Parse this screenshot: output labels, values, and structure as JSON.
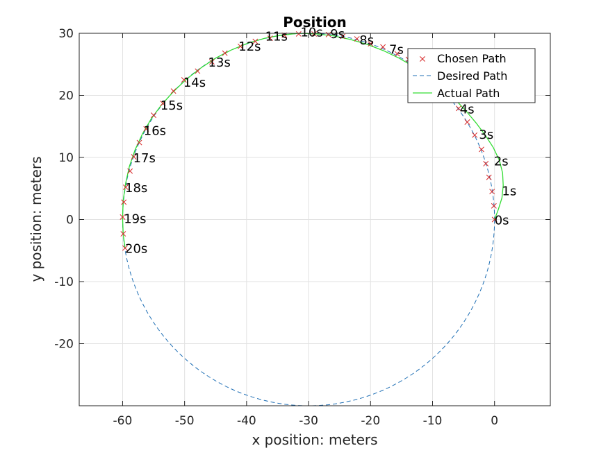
{
  "chart_data": {
    "type": "line",
    "title": "Position",
    "xlabel": "x position: meters",
    "ylabel": "y position: meters",
    "xlim": [
      -67,
      9
    ],
    "ylim": [
      -30,
      30
    ],
    "xticks": [
      -60,
      -50,
      -40,
      -30,
      -20,
      -10,
      0
    ],
    "yticks": [
      -20,
      -10,
      0,
      10,
      20,
      30
    ],
    "tick_labels_x": [
      "-60",
      "-50",
      "-40",
      "-30",
      "-20",
      "-10",
      "0"
    ],
    "tick_labels_y": [
      "-20",
      "-10",
      "0",
      "10",
      "20",
      "30"
    ],
    "grid": true,
    "legend_position": "top-right",
    "series": [
      {
        "name": "Chosen Path",
        "style": "x-markers",
        "color": "#d62728",
        "points": [
          [
            0,
            0
          ],
          [
            -0.1,
            2.2
          ],
          [
            -0.4,
            4.5
          ],
          [
            -0.9,
            6.8
          ],
          [
            -1.4,
            9.0
          ],
          [
            -2.1,
            11.3
          ],
          [
            -3.2,
            13.6
          ],
          [
            -4.4,
            15.7
          ],
          [
            -5.8,
            17.9
          ],
          [
            -7.2,
            19.8
          ],
          [
            -8.7,
            21.5
          ],
          [
            -10.5,
            23.2
          ],
          [
            -12.1,
            24.5
          ],
          [
            -13.9,
            25.8
          ],
          [
            -15.7,
            26.7
          ],
          [
            -18.0,
            27.8
          ],
          [
            -20.0,
            28.3
          ],
          [
            -22.2,
            29.1
          ],
          [
            -24.5,
            29.5
          ],
          [
            -26.8,
            29.8
          ],
          [
            -29.1,
            29.9
          ],
          [
            -31.6,
            29.9
          ],
          [
            -33.9,
            29.7
          ],
          [
            -36.2,
            29.2
          ],
          [
            -38.6,
            28.7
          ],
          [
            -41.0,
            27.9
          ],
          [
            -43.5,
            26.8
          ],
          [
            -45.6,
            25.4
          ],
          [
            -47.9,
            23.9
          ],
          [
            -50.1,
            22.5
          ],
          [
            -51.8,
            20.7
          ],
          [
            -53.5,
            18.7
          ],
          [
            -55.0,
            16.8
          ],
          [
            -56.2,
            14.6
          ],
          [
            -57.3,
            12.4
          ],
          [
            -58.2,
            10.1
          ],
          [
            -58.8,
            7.8
          ],
          [
            -59.5,
            5.2
          ],
          [
            -59.8,
            2.8
          ],
          [
            -60.0,
            0.4
          ],
          [
            -59.9,
            -2.3
          ],
          [
            -59.6,
            -4.6
          ]
        ]
      },
      {
        "name": "Desired Path",
        "style": "dashed",
        "color": "#1f6fb5",
        "circle": {
          "center": [
            -30,
            0
          ],
          "radius": 30
        }
      },
      {
        "name": "Actual Path",
        "style": "solid",
        "color": "#33dd33",
        "points": [
          [
            0,
            0
          ],
          [
            0.6,
            1.6
          ],
          [
            1.2,
            3.5
          ],
          [
            1.4,
            5.5
          ],
          [
            1.3,
            7.5
          ],
          [
            0.8,
            9.5
          ],
          [
            -0.2,
            11.6
          ],
          [
            -1.5,
            13.6
          ],
          [
            -3.0,
            15.6
          ],
          [
            -4.7,
            17.6
          ],
          [
            -6.6,
            19.6
          ],
          [
            -8.6,
            21.4
          ],
          [
            -10.8,
            23.1
          ],
          [
            -13.0,
            24.6
          ],
          [
            -15.4,
            26.0
          ],
          [
            -17.9,
            27.2
          ],
          [
            -20.5,
            28.2
          ],
          [
            -23.2,
            29.0
          ],
          [
            -26.0,
            29.6
          ],
          [
            -28.8,
            29.9
          ],
          [
            -31.6,
            30.0
          ],
          [
            -34.4,
            29.7
          ],
          [
            -37.1,
            29.2
          ],
          [
            -39.8,
            28.4
          ],
          [
            -42.5,
            27.3
          ],
          [
            -45.0,
            26.0
          ],
          [
            -47.4,
            24.4
          ],
          [
            -49.7,
            22.6
          ],
          [
            -51.8,
            20.6
          ],
          [
            -53.7,
            18.5
          ],
          [
            -55.4,
            16.2
          ],
          [
            -56.8,
            13.8
          ],
          [
            -58.0,
            11.2
          ],
          [
            -58.9,
            8.6
          ],
          [
            -59.5,
            5.9
          ],
          [
            -59.9,
            3.1
          ],
          [
            -60.0,
            0.3
          ],
          [
            -59.9,
            -2.4
          ],
          [
            -59.6,
            -4.6
          ]
        ]
      }
    ],
    "annotations": [
      {
        "text": "0s",
        "x": 0.0,
        "y": 0.0
      },
      {
        "text": "1s",
        "x": 1.2,
        "y": 4.7
      },
      {
        "text": "2s",
        "x": -0.1,
        "y": 9.5
      },
      {
        "text": "3s",
        "x": -2.5,
        "y": 13.8
      },
      {
        "text": "4s",
        "x": -5.6,
        "y": 17.9
      },
      {
        "text": "7s",
        "x": -17.0,
        "y": 27.5
      },
      {
        "text": "8s",
        "x": -21.8,
        "y": 29.0
      },
      {
        "text": "9s",
        "x": -26.5,
        "y": 30.0
      },
      {
        "text": "10s",
        "x": -31.3,
        "y": 30.3
      },
      {
        "text": "11s",
        "x": -37.0,
        "y": 29.6
      },
      {
        "text": "12s",
        "x": -41.3,
        "y": 28.0
      },
      {
        "text": "13s",
        "x": -46.2,
        "y": 25.4
      },
      {
        "text": "14s",
        "x": -50.2,
        "y": 22.2
      },
      {
        "text": "15s",
        "x": -53.9,
        "y": 18.5
      },
      {
        "text": "16s",
        "x": -56.6,
        "y": 14.4
      },
      {
        "text": "17s",
        "x": -58.3,
        "y": 10.0
      },
      {
        "text": "18s",
        "x": -59.6,
        "y": 5.2
      },
      {
        "text": "19s",
        "x": -59.8,
        "y": 0.2
      },
      {
        "text": "20s",
        "x": -59.6,
        "y": -4.6
      }
    ]
  }
}
